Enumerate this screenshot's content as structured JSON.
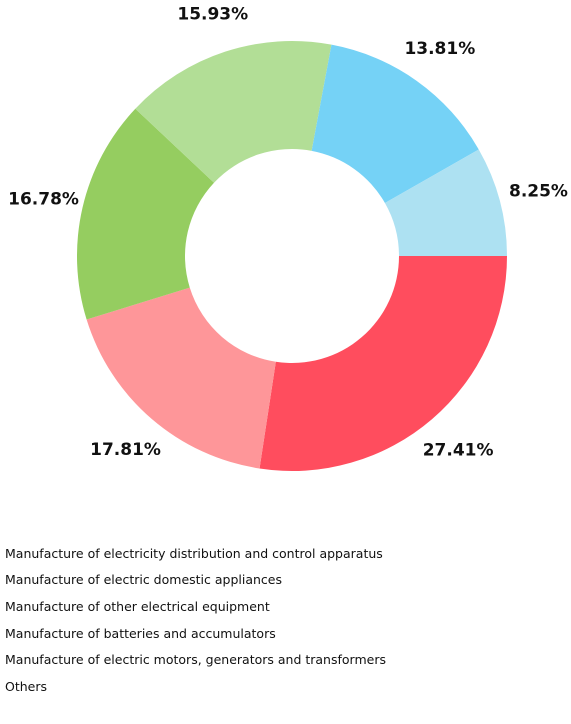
{
  "chart_data": {
    "type": "pie",
    "donut": true,
    "legend_position": "bottom",
    "title": "",
    "categories": [
      "Manufacture of electricity distribution and control apparatus",
      "Manufacture of electric domestic appliances",
      "Manufacture of other electrical equipment",
      "Manufacture of batteries and accumulators",
      "Manufacture of electric motors, generators and transformers",
      "Others"
    ],
    "values": [
      27.41,
      17.81,
      16.78,
      15.93,
      13.81,
      8.25
    ],
    "value_labels": [
      "27.41%",
      "17.81%",
      "16.78%",
      "15.93%",
      "13.81%",
      "8.25%"
    ],
    "colors": [
      "#ff4d5e",
      "#fe9699",
      "#95cd60",
      "#b2de96",
      "#75d2f6",
      "#ade1f2"
    ]
  }
}
